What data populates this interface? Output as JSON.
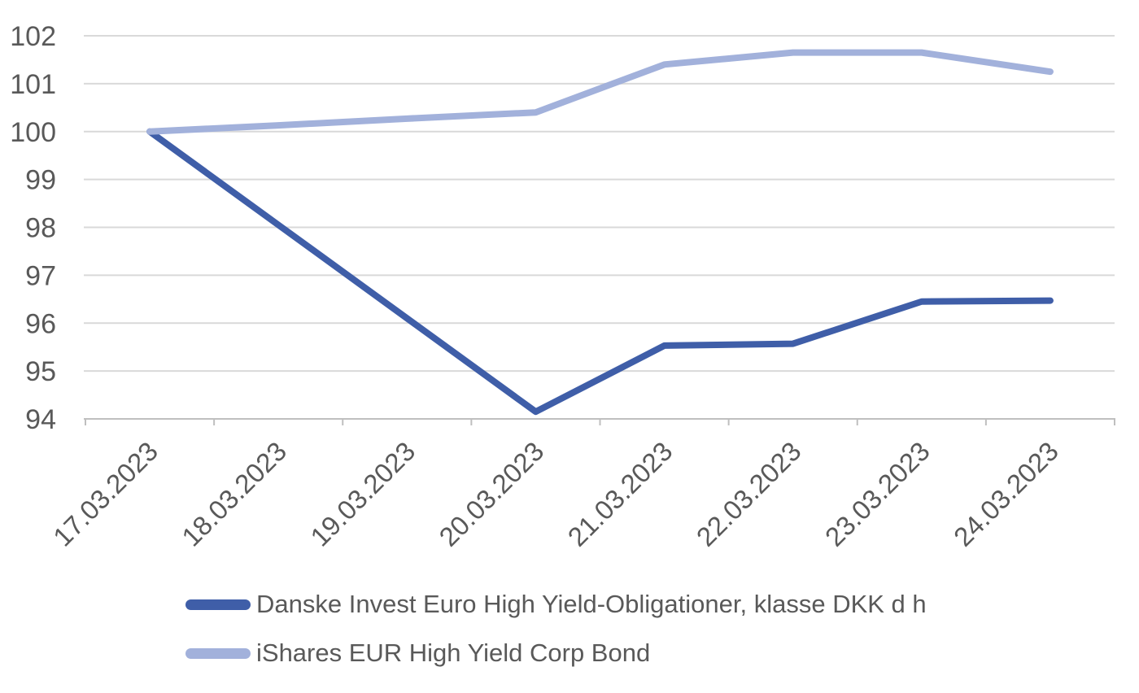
{
  "chart_data": {
    "type": "line",
    "title": "",
    "xlabel": "",
    "ylabel": "",
    "categories": [
      "17.03.2023",
      "18.03.2023",
      "19.03.2023",
      "20.03.2023",
      "21.03.2023",
      "22.03.2023",
      "23.03.2023",
      "24.03.2023"
    ],
    "series": [
      {
        "name": "Danske Invest Euro High Yield-Obligationer, klasse DKK d h",
        "color": "#3F5EA8",
        "values": [
          100.0,
          98.05,
          96.1,
          94.15,
          95.53,
          95.57,
          96.45,
          96.47
        ]
      },
      {
        "name": "iShares EUR High Yield Corp Bond",
        "color": "#A2B1DB",
        "values": [
          100.0,
          100.13,
          100.27,
          100.4,
          101.4,
          101.65,
          101.65,
          101.25
        ]
      }
    ],
    "ylim": [
      94,
      102
    ],
    "y_ticks": [
      94,
      95,
      96,
      97,
      98,
      99,
      100,
      101,
      102
    ],
    "y_tick_step": 1,
    "grid": true,
    "x_labels_rotation_deg": -45,
    "legend_position": "bottom-left"
  },
  "colors": {
    "gridline": "#D9D9D9",
    "axis_line": "#BFBFBF",
    "tick_text": "#595959",
    "background": "#FFFFFF"
  }
}
